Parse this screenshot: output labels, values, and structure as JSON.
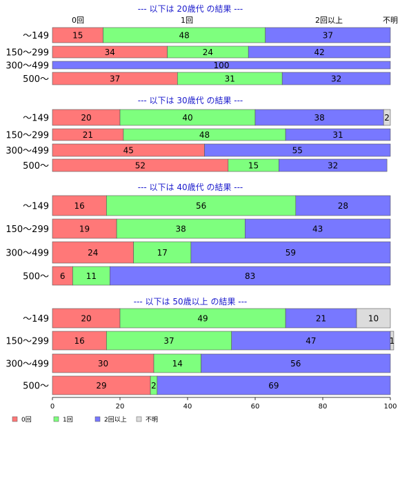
{
  "chart_data": {
    "type": "bar",
    "orientation": "horizontal",
    "stacked": true,
    "xlim": [
      0,
      100
    ],
    "x_ticks": [
      "0",
      "20",
      "40",
      "60",
      "80",
      "100"
    ],
    "header_labels": [
      "0回",
      "1回",
      "2回以上",
      "不明"
    ],
    "series": [
      {
        "name": "0回",
        "color": "#ff7878"
      },
      {
        "name": "1回",
        "color": "#7eff7e"
      },
      {
        "name": "2回以上",
        "color": "#7878ff"
      },
      {
        "name": "不明",
        "color": "#dcdcdc"
      }
    ],
    "groups": [
      {
        "title": "--- 以下は 20歳代 の結果 ---",
        "rows": [
          {
            "label": "～149",
            "values": [
              15,
              48,
              37,
              0
            ]
          },
          {
            "label": "150～299",
            "values": [
              34,
              24,
              42,
              0
            ]
          },
          {
            "label": "300～499",
            "values": [
              0,
              0,
              100,
              0
            ]
          },
          {
            "label": "500～",
            "values": [
              37,
              31,
              32,
              0
            ]
          }
        ]
      },
      {
        "title": "--- 以下は 30歳代 の結果 ---",
        "rows": [
          {
            "label": "～149",
            "values": [
              20,
              40,
              38,
              2
            ]
          },
          {
            "label": "150～299",
            "values": [
              21,
              48,
              31,
              0
            ]
          },
          {
            "label": "300～499",
            "values": [
              45,
              0,
              55,
              0
            ]
          },
          {
            "label": "500～",
            "values": [
              52,
              15,
              32,
              0
            ]
          }
        ]
      },
      {
        "title": "--- 以下は 40歳代 の結果 ---",
        "rows": [
          {
            "label": "～149",
            "values": [
              16,
              56,
              28,
              0
            ]
          },
          {
            "label": "150～299",
            "values": [
              19,
              38,
              43,
              0
            ]
          },
          {
            "label": "300～499",
            "values": [
              24,
              17,
              59,
              0
            ]
          },
          {
            "label": "500～",
            "values": [
              6,
              11,
              83,
              0
            ]
          }
        ]
      },
      {
        "title": "--- 以下は 50歳以上 の結果 ---",
        "rows": [
          {
            "label": "～149",
            "values": [
              20,
              49,
              21,
              10
            ]
          },
          {
            "label": "150～299",
            "values": [
              16,
              37,
              47,
              1
            ]
          },
          {
            "label": "300～499",
            "values": [
              30,
              14,
              56,
              0
            ]
          },
          {
            "label": "500～",
            "values": [
              29,
              2,
              69,
              0
            ]
          }
        ]
      }
    ]
  }
}
